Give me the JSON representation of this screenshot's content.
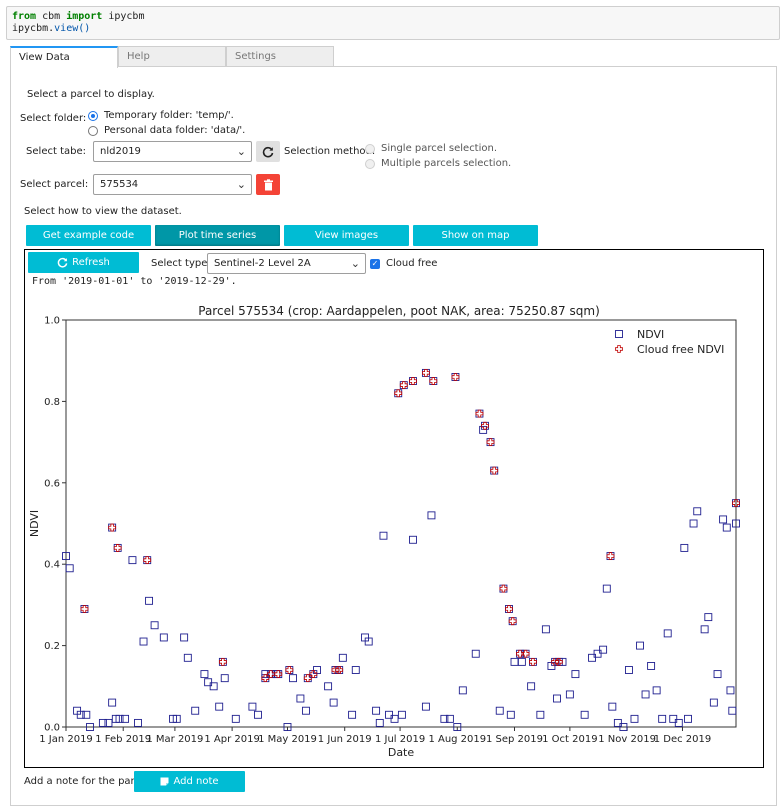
{
  "code": {
    "line1": {
      "kw1": "from",
      "mod": " cbm ",
      "kw2": "import",
      "rest": " ipycbm"
    },
    "line2": {
      "obj": "ipycbm.",
      "fn": "view",
      "paren": "()"
    }
  },
  "tabs": [
    {
      "label": "View Data",
      "active": true
    },
    {
      "label": "Help",
      "active": false
    },
    {
      "label": "Settings",
      "active": false
    }
  ],
  "view": {
    "intro": "Select a parcel to display.",
    "folder_label": "Select folder:",
    "folder_options": [
      "Temporary folder: 'temp/'.",
      "Personal data folder: 'data/'."
    ],
    "table_label": "Select tabe:",
    "table_value": "nld2019",
    "method_label": "Selection method:",
    "method_options": [
      "Single parcel selection.",
      "Multiple parcels selection."
    ],
    "parcel_label": "Select parcel:",
    "parcel_value": "575534",
    "how_label": "Select how to view the dataset.",
    "buttons": [
      "Get example code",
      "Plot time series",
      "View images",
      "Show on map"
    ],
    "refresh_label": "Refresh",
    "type_label": "Select type:",
    "type_value": "Sentinel-2 Level 2A",
    "cloud_free_label": "Cloud free",
    "range_text": "From '2019-01-01' to '2019-12-29'.",
    "note_label": "Add a note for the parcel",
    "note_button": "Add note"
  },
  "colors": {
    "accent": "#00bcd4",
    "accent_dark": "#0097a7",
    "danger": "#f44336",
    "ndvi": "#1f1f8f",
    "cloud_free": "#c00000"
  },
  "icons": {
    "refresh": "refresh-icon",
    "trash": "trash-icon",
    "note": "note-icon",
    "dropdown": "chevron-down-icon"
  },
  "chart_data": {
    "type": "scatter",
    "title": "Parcel 575534 (crop: Aardappelen, poot NAK, area: 75250.87 sqm)",
    "xlabel": "Date",
    "ylabel": "NDVI",
    "ylim": [
      0.0,
      1.0
    ],
    "xlim_days": [
      0,
      363
    ],
    "x_ticks": [
      {
        "label": "1 Jan 2019",
        "day": 0
      },
      {
        "label": "1 Feb 2019",
        "day": 31
      },
      {
        "label": "1 Mar 2019",
        "day": 59
      },
      {
        "label": "1 Apr 2019",
        "day": 90
      },
      {
        "label": "1 May 2019",
        "day": 120
      },
      {
        "label": "1 Jun 2019",
        "day": 151
      },
      {
        "label": "1 Jul 2019",
        "day": 181
      },
      {
        "label": "1 Aug 2019",
        "day": 212
      },
      {
        "label": "1 Sep 2019",
        "day": 243
      },
      {
        "label": "1 Oct 2019",
        "day": 273
      },
      {
        "label": "1 Nov 2019",
        "day": 304
      },
      {
        "label": "1 Dec 2019",
        "day": 334
      }
    ],
    "y_ticks": [
      "0.0",
      "0.2",
      "0.4",
      "0.6",
      "0.8",
      "1.0"
    ],
    "legend_position": "top-right",
    "series": [
      {
        "name": "NDVI",
        "marker": "square",
        "points": [
          [
            0,
            0.42
          ],
          [
            2,
            0.39
          ],
          [
            6,
            0.04
          ],
          [
            8,
            0.03
          ],
          [
            11,
            0.03
          ],
          [
            13,
            0.0
          ],
          [
            20,
            0.01
          ],
          [
            23,
            0.01
          ],
          [
            25,
            0.06
          ],
          [
            27,
            0.02
          ],
          [
            29,
            0.02
          ],
          [
            32,
            0.02
          ],
          [
            36,
            0.41
          ],
          [
            39,
            0.01
          ],
          [
            42,
            0.21
          ],
          [
            45,
            0.31
          ],
          [
            48,
            0.25
          ],
          [
            53,
            0.22
          ],
          [
            58,
            0.02
          ],
          [
            60,
            0.02
          ],
          [
            64,
            0.22
          ],
          [
            66,
            0.17
          ],
          [
            70,
            0.04
          ],
          [
            75,
            0.13
          ],
          [
            77,
            0.11
          ],
          [
            80,
            0.1
          ],
          [
            83,
            0.05
          ],
          [
            86,
            0.12
          ],
          [
            92,
            0.02
          ],
          [
            101,
            0.05
          ],
          [
            104,
            0.03
          ],
          [
            108,
            0.13
          ],
          [
            114,
            0.13
          ],
          [
            120,
            0.0
          ],
          [
            123,
            0.12
          ],
          [
            127,
            0.07
          ],
          [
            130,
            0.04
          ],
          [
            136,
            0.14
          ],
          [
            142,
            0.1
          ],
          [
            145,
            0.06
          ],
          [
            150,
            0.17
          ],
          [
            155,
            0.03
          ],
          [
            157,
            0.14
          ],
          [
            162,
            0.22
          ],
          [
            164,
            0.21
          ],
          [
            168,
            0.04
          ],
          [
            170,
            0.01
          ],
          [
            172,
            0.47
          ],
          [
            175,
            0.03
          ],
          [
            178,
            0.02
          ],
          [
            182,
            0.03
          ],
          [
            188,
            0.46
          ],
          [
            195,
            0.05
          ],
          [
            198,
            0.52
          ],
          [
            205,
            0.02
          ],
          [
            208,
            0.02
          ],
          [
            212,
            0.0
          ],
          [
            215,
            0.09
          ],
          [
            222,
            0.18
          ],
          [
            226,
            0.73
          ],
          [
            235,
            0.04
          ],
          [
            241,
            0.03
          ],
          [
            243,
            0.16
          ],
          [
            247,
            0.16
          ],
          [
            252,
            0.1
          ],
          [
            257,
            0.03
          ],
          [
            260,
            0.24
          ],
          [
            263,
            0.15
          ],
          [
            266,
            0.07
          ],
          [
            269,
            0.16
          ],
          [
            273,
            0.08
          ],
          [
            276,
            0.13
          ],
          [
            281,
            0.03
          ],
          [
            285,
            0.17
          ],
          [
            288,
            0.18
          ],
          [
            291,
            0.19
          ],
          [
            293,
            0.34
          ],
          [
            296,
            0.05
          ],
          [
            299,
            0.01
          ],
          [
            302,
            0.0
          ],
          [
            305,
            0.14
          ],
          [
            308,
            0.02
          ],
          [
            311,
            0.2
          ],
          [
            314,
            0.08
          ],
          [
            317,
            0.15
          ],
          [
            320,
            0.09
          ],
          [
            323,
            0.02
          ],
          [
            326,
            0.23
          ],
          [
            329,
            0.02
          ],
          [
            332,
            0.01
          ],
          [
            335,
            0.44
          ],
          [
            337,
            0.02
          ],
          [
            340,
            0.5
          ],
          [
            342,
            0.53
          ],
          [
            346,
            0.24
          ],
          [
            348,
            0.27
          ],
          [
            351,
            0.06
          ],
          [
            353,
            0.13
          ],
          [
            356,
            0.51
          ],
          [
            358,
            0.49
          ],
          [
            360,
            0.09
          ],
          [
            361,
            0.04
          ],
          [
            363,
            0.5
          ]
        ]
      },
      {
        "name": "Cloud free NDVI",
        "marker": "plus",
        "points": [
          [
            10,
            0.29
          ],
          [
            25,
            0.49
          ],
          [
            28,
            0.44
          ],
          [
            44,
            0.41
          ],
          [
            85,
            0.16
          ],
          [
            108,
            0.12
          ],
          [
            111,
            0.13
          ],
          [
            115,
            0.13
          ],
          [
            121,
            0.14
          ],
          [
            131,
            0.12
          ],
          [
            134,
            0.13
          ],
          [
            146,
            0.14
          ],
          [
            148,
            0.14
          ],
          [
            180,
            0.82
          ],
          [
            183,
            0.84
          ],
          [
            188,
            0.85
          ],
          [
            195,
            0.87
          ],
          [
            199,
            0.85
          ],
          [
            211,
            0.86
          ],
          [
            224,
            0.77
          ],
          [
            227,
            0.74
          ],
          [
            230,
            0.7
          ],
          [
            232,
            0.63
          ],
          [
            237,
            0.34
          ],
          [
            240,
            0.29
          ],
          [
            242,
            0.26
          ],
          [
            246,
            0.18
          ],
          [
            249,
            0.18
          ],
          [
            253,
            0.16
          ],
          [
            265,
            0.16
          ],
          [
            267,
            0.16
          ],
          [
            295,
            0.42
          ],
          [
            363,
            0.55
          ]
        ]
      }
    ]
  }
}
